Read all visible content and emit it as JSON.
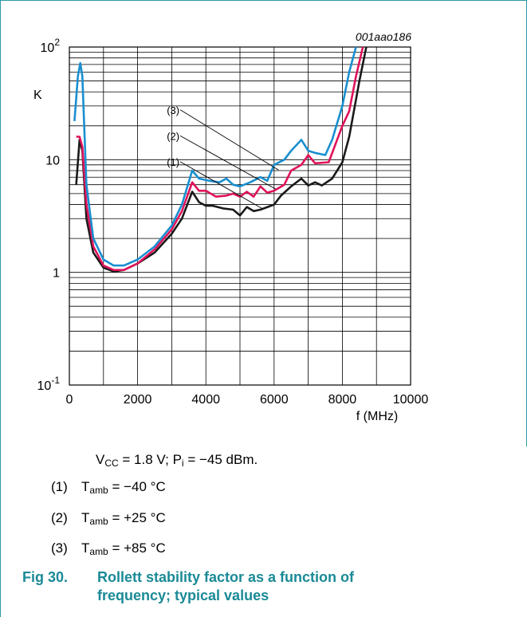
{
  "figure": {
    "number": "Fig 30.",
    "title_line1": "Rollett stability factor as a function of",
    "title_line2": "frequency; typical values"
  },
  "conditions": {
    "vcc_sub": "CC",
    "text_a": " = 1.8 V; P",
    "pi_sub": "i",
    "text_b": " = −45 dBm."
  },
  "legend": [
    {
      "num": "(1)",
      "sym": "T",
      "sub": "amb",
      "val": " = −40 °C"
    },
    {
      "num": "(2)",
      "sym": "T",
      "sub": "amb",
      "val": " = +25 °C"
    },
    {
      "num": "(3)",
      "sym": "T",
      "sub": "amb",
      "val": " = +85 °C"
    }
  ],
  "chart_data": {
    "type": "line",
    "code": "001aao186",
    "ylabel": "K",
    "xlabel": "f (MHz)",
    "yscale": "log",
    "ylim": [
      0.1,
      100
    ],
    "xlim": [
      0,
      10000
    ],
    "grid": true,
    "x_ticks": [
      "0",
      "2000",
      "4000",
      "6000",
      "8000",
      "10000"
    ],
    "y_ticks": [
      {
        "value": 0.1,
        "base": "10",
        "exp": "-1"
      },
      {
        "value": 1,
        "base": "1",
        "exp": ""
      },
      {
        "value": 10,
        "base": "10",
        "exp": ""
      },
      {
        "value": 100,
        "base": "10",
        "exp": "2"
      }
    ],
    "series": [
      {
        "name": "(1)",
        "color": "#1a1a1a",
        "points": [
          [
            200,
            6
          ],
          [
            300,
            15
          ],
          [
            380,
            12
          ],
          [
            500,
            3
          ],
          [
            700,
            1.5
          ],
          [
            1000,
            1.1
          ],
          [
            1300,
            1.02
          ],
          [
            1600,
            1.05
          ],
          [
            2000,
            1.2
          ],
          [
            2500,
            1.5
          ],
          [
            3000,
            2.2
          ],
          [
            3300,
            3
          ],
          [
            3600,
            5.2
          ],
          [
            3800,
            4.2
          ],
          [
            4000,
            3.9
          ],
          [
            4200,
            3.9
          ],
          [
            4500,
            3.7
          ],
          [
            4800,
            3.6
          ],
          [
            5000,
            3.2
          ],
          [
            5200,
            3.8
          ],
          [
            5400,
            3.5
          ],
          [
            5600,
            3.6
          ],
          [
            6000,
            4
          ],
          [
            6200,
            4.8
          ],
          [
            6500,
            5.8
          ],
          [
            6800,
            6.8
          ],
          [
            7000,
            5.9
          ],
          [
            7200,
            6.3
          ],
          [
            7400,
            5.9
          ],
          [
            7700,
            6.8
          ],
          [
            8000,
            9.5
          ],
          [
            8200,
            16
          ],
          [
            8500,
            50
          ],
          [
            8700,
            100
          ]
        ]
      },
      {
        "name": "(2)",
        "color": "#e0125b",
        "points": [
          [
            200,
            16
          ],
          [
            300,
            16
          ],
          [
            380,
            13
          ],
          [
            500,
            4
          ],
          [
            700,
            1.7
          ],
          [
            1000,
            1.15
          ],
          [
            1300,
            1.05
          ],
          [
            1600,
            1.05
          ],
          [
            2000,
            1.2
          ],
          [
            2500,
            1.6
          ],
          [
            3000,
            2.4
          ],
          [
            3300,
            3.5
          ],
          [
            3600,
            6.3
          ],
          [
            3800,
            5.3
          ],
          [
            4000,
            5.3
          ],
          [
            4300,
            4.7
          ],
          [
            4600,
            4.8
          ],
          [
            4800,
            5
          ],
          [
            5000,
            4.7
          ],
          [
            5200,
            5.2
          ],
          [
            5400,
            4.7
          ],
          [
            5600,
            5.8
          ],
          [
            5800,
            5.1
          ],
          [
            6000,
            5.3
          ],
          [
            6300,
            6
          ],
          [
            6500,
            8
          ],
          [
            6800,
            9
          ],
          [
            7000,
            11
          ],
          [
            7200,
            9.3
          ],
          [
            7600,
            9.5
          ],
          [
            8000,
            20
          ],
          [
            8200,
            27
          ],
          [
            8400,
            55
          ],
          [
            8600,
            100
          ]
        ]
      },
      {
        "name": "(3)",
        "color": "#1a8fd0",
        "points": [
          [
            150,
            22
          ],
          [
            250,
            55
          ],
          [
            320,
            72
          ],
          [
            380,
            55
          ],
          [
            500,
            6
          ],
          [
            700,
            2
          ],
          [
            1000,
            1.3
          ],
          [
            1300,
            1.15
          ],
          [
            1600,
            1.15
          ],
          [
            2000,
            1.3
          ],
          [
            2500,
            1.7
          ],
          [
            3000,
            2.6
          ],
          [
            3300,
            4
          ],
          [
            3600,
            8
          ],
          [
            3800,
            6.8
          ],
          [
            4100,
            6.5
          ],
          [
            4400,
            6.3
          ],
          [
            4600,
            6.8
          ],
          [
            4800,
            6
          ],
          [
            5000,
            5.8
          ],
          [
            5300,
            6.3
          ],
          [
            5600,
            7
          ],
          [
            5800,
            6.5
          ],
          [
            6000,
            9
          ],
          [
            6300,
            10
          ],
          [
            6500,
            12
          ],
          [
            6800,
            15
          ],
          [
            7000,
            12
          ],
          [
            7200,
            11.5
          ],
          [
            7500,
            11
          ],
          [
            7700,
            15
          ],
          [
            8000,
            30
          ],
          [
            8200,
            60
          ],
          [
            8400,
            100
          ]
        ]
      }
    ],
    "annotations": [
      {
        "label": "(3)",
        "series": "(3)",
        "from": [
          3250,
          27.7
        ],
        "to": [
          6130,
          8.1
        ]
      },
      {
        "label": "(2)",
        "series": "(2)",
        "from": [
          3250,
          16.3
        ],
        "to": [
          6040,
          5.5
        ]
      },
      {
        "label": "(1)",
        "series": "(1)",
        "from": [
          3250,
          9.6
        ],
        "to": [
          5640,
          3.7
        ]
      }
    ]
  }
}
